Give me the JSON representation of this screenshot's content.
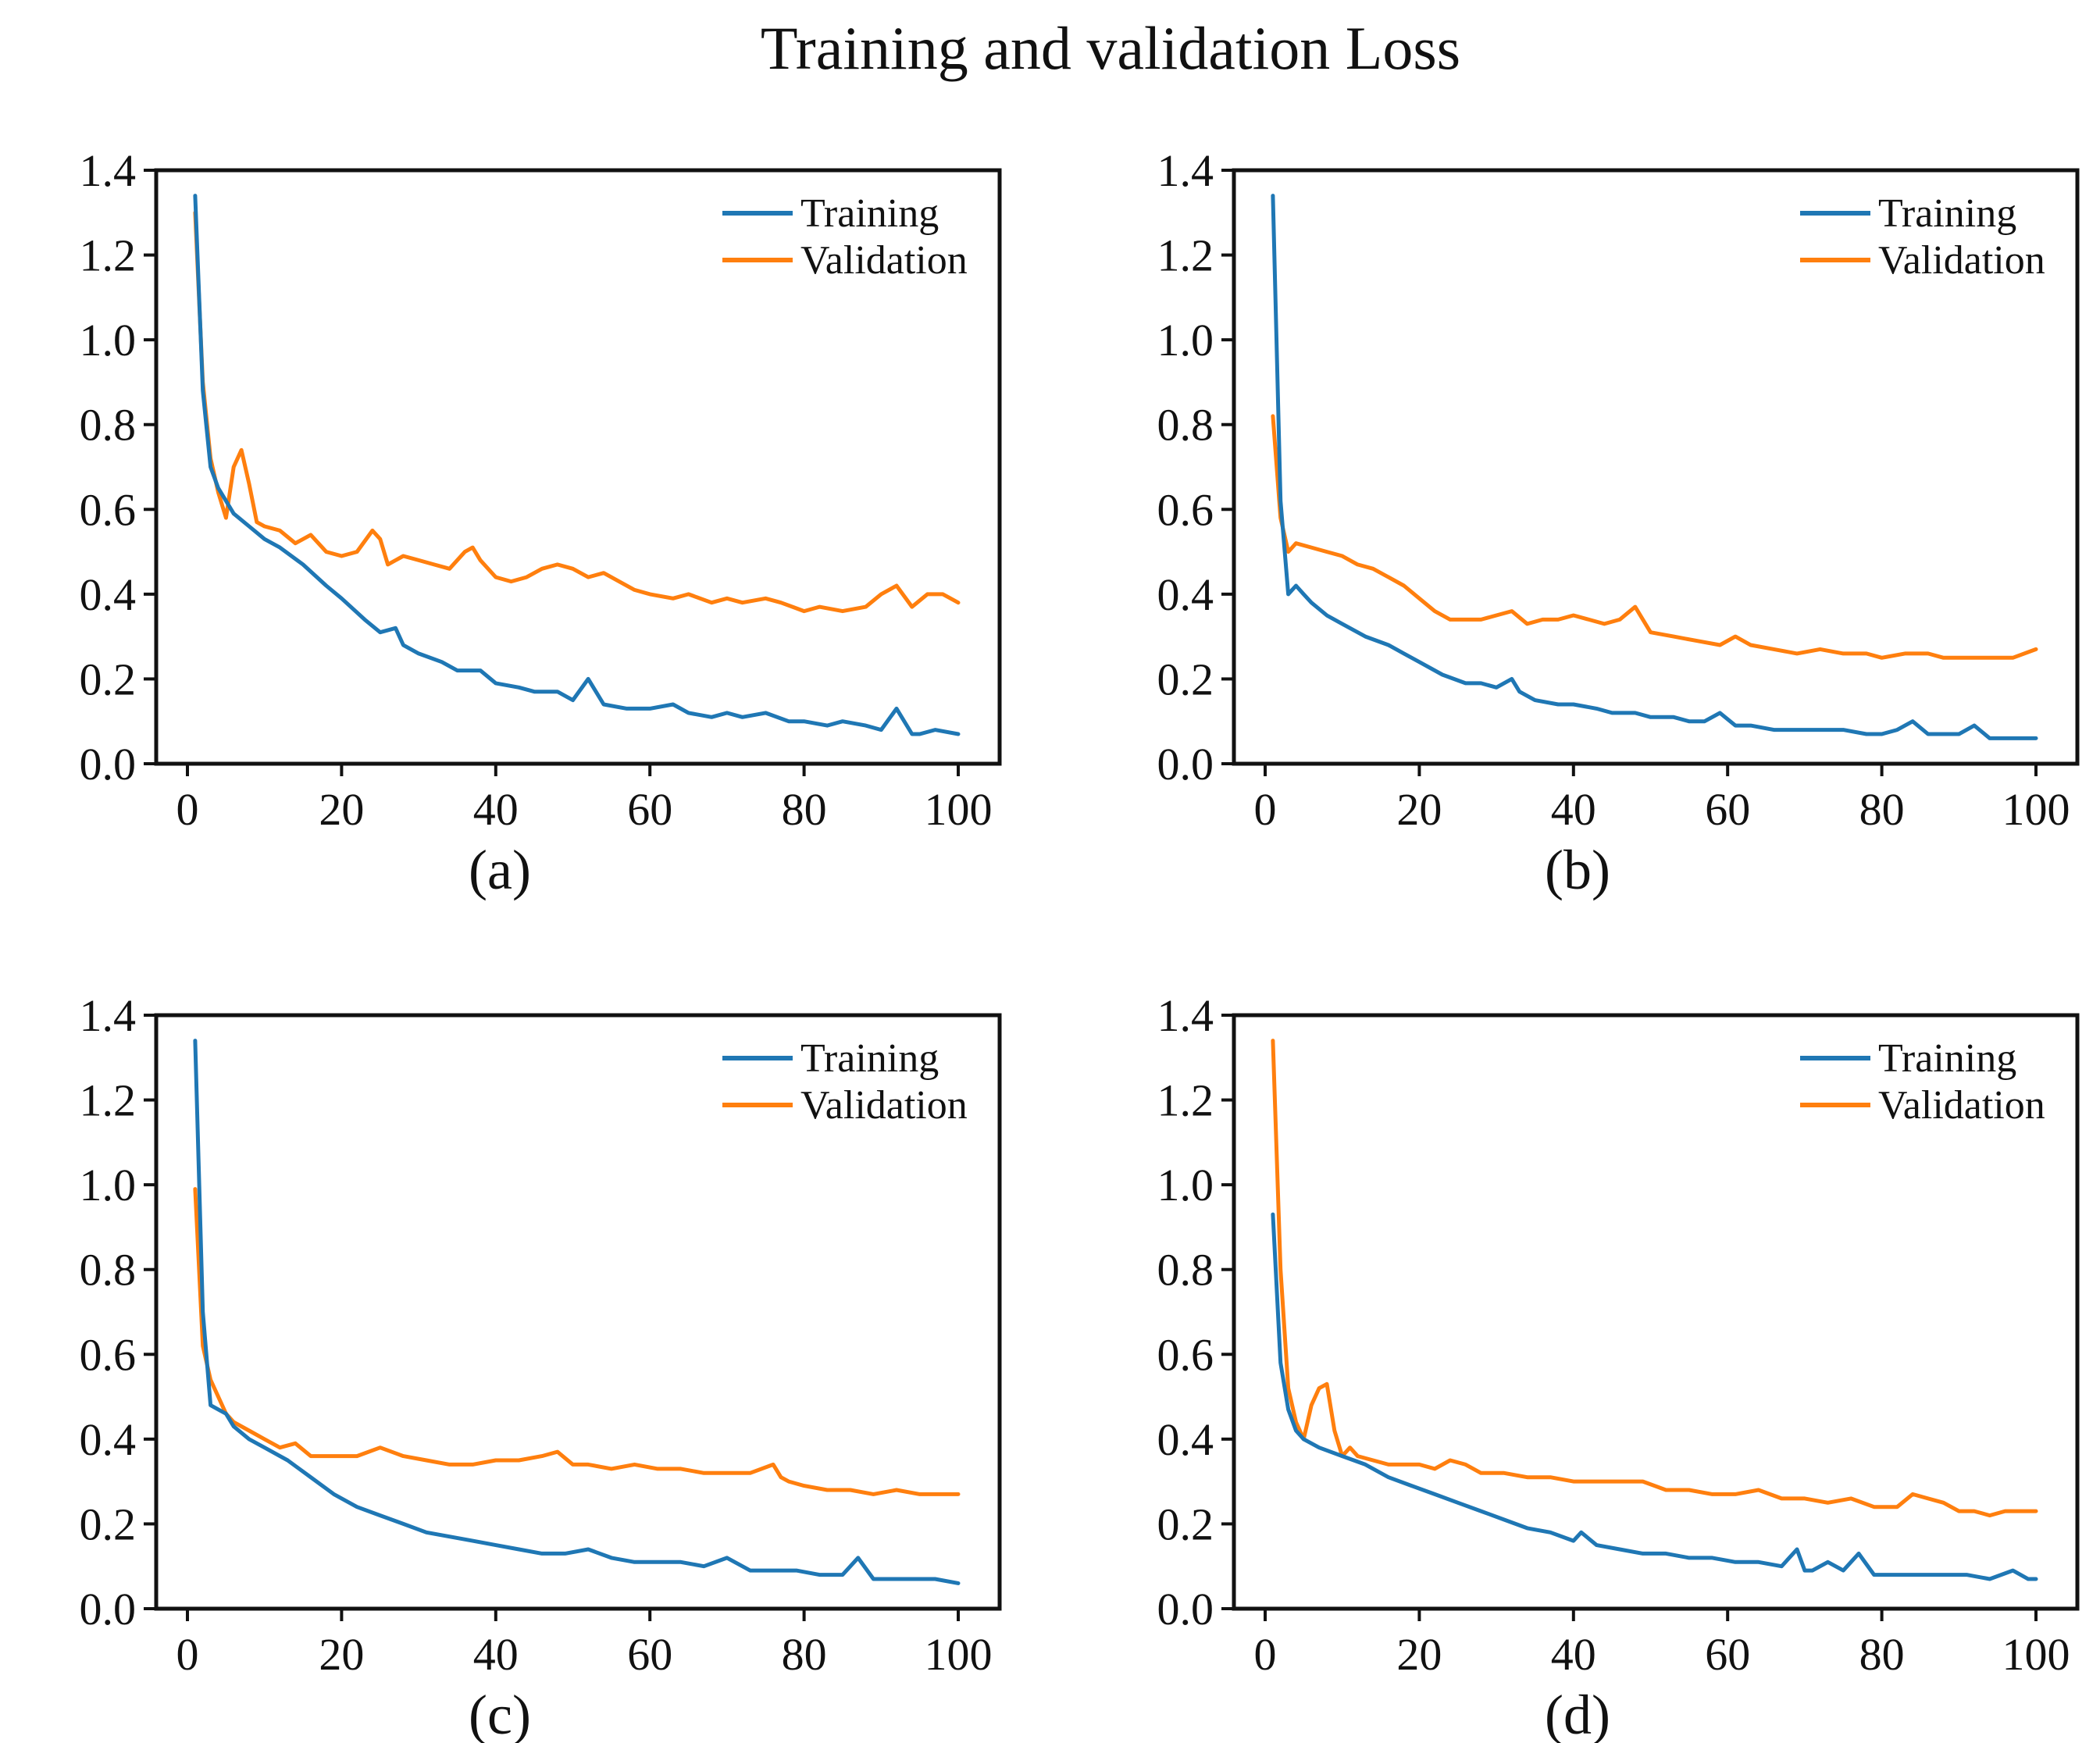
{
  "figure_title": "Training and validation Loss",
  "chart_data": [
    {
      "type": "line",
      "label": "(a)",
      "xlim": [
        0,
        100
      ],
      "ylim": [
        0.0,
        1.4
      ],
      "xticks": [
        "0",
        "20",
        "40",
        "60",
        "80",
        "100"
      ],
      "yticks": [
        "0.0",
        "0.2",
        "0.4",
        "0.6",
        "0.8",
        "1.0",
        "1.2",
        "1.4"
      ],
      "legend_position": "top-right",
      "series": [
        {
          "name": "Training",
          "color": "#1f77b4",
          "x": [
            1,
            2,
            3,
            4,
            5,
            6,
            8,
            10,
            12,
            15,
            18,
            20,
            23,
            25,
            27,
            28,
            30,
            33,
            35,
            38,
            40,
            43,
            45,
            48,
            50,
            52,
            54,
            57,
            60,
            63,
            65,
            68,
            70,
            72,
            75,
            78,
            80,
            83,
            85,
            88,
            90,
            92,
            94,
            95,
            97,
            100
          ],
          "y": [
            1.34,
            0.88,
            0.7,
            0.65,
            0.62,
            0.59,
            0.56,
            0.53,
            0.51,
            0.47,
            0.42,
            0.39,
            0.34,
            0.31,
            0.32,
            0.28,
            0.26,
            0.24,
            0.22,
            0.22,
            0.19,
            0.18,
            0.17,
            0.17,
            0.15,
            0.2,
            0.14,
            0.13,
            0.13,
            0.14,
            0.12,
            0.11,
            0.12,
            0.11,
            0.12,
            0.1,
            0.1,
            0.09,
            0.1,
            0.09,
            0.08,
            0.13,
            0.07,
            0.07,
            0.08,
            0.07
          ]
        },
        {
          "name": "Validation",
          "color": "#ff7f0e",
          "x": [
            1,
            2,
            3,
            4,
            5,
            6,
            7,
            8,
            9,
            10,
            12,
            14,
            16,
            18,
            20,
            22,
            24,
            25,
            26,
            28,
            30,
            32,
            34,
            36,
            37,
            38,
            40,
            42,
            44,
            46,
            48,
            50,
            52,
            54,
            56,
            58,
            60,
            63,
            65,
            68,
            70,
            72,
            75,
            77,
            80,
            82,
            85,
            88,
            90,
            92,
            94,
            96,
            98,
            100
          ],
          "y": [
            1.3,
            0.9,
            0.72,
            0.64,
            0.58,
            0.7,
            0.74,
            0.66,
            0.57,
            0.56,
            0.55,
            0.52,
            0.54,
            0.5,
            0.49,
            0.5,
            0.55,
            0.53,
            0.47,
            0.49,
            0.48,
            0.47,
            0.46,
            0.5,
            0.51,
            0.48,
            0.44,
            0.43,
            0.44,
            0.46,
            0.47,
            0.46,
            0.44,
            0.45,
            0.43,
            0.41,
            0.4,
            0.39,
            0.4,
            0.38,
            0.39,
            0.38,
            0.39,
            0.38,
            0.36,
            0.37,
            0.36,
            0.37,
            0.4,
            0.42,
            0.37,
            0.4,
            0.4,
            0.38
          ]
        }
      ]
    },
    {
      "type": "line",
      "label": "(b)",
      "xlim": [
        0,
        100
      ],
      "ylim": [
        0.0,
        1.4
      ],
      "xticks": [
        "0",
        "20",
        "40",
        "60",
        "80",
        "100"
      ],
      "yticks": [
        "0.0",
        "0.2",
        "0.4",
        "0.6",
        "0.8",
        "1.0",
        "1.2",
        "1.4"
      ],
      "legend_position": "top-right",
      "series": [
        {
          "name": "Training",
          "color": "#1f77b4",
          "x": [
            1,
            2,
            3,
            4,
            5,
            6,
            8,
            10,
            13,
            16,
            18,
            20,
            23,
            26,
            28,
            30,
            32,
            33,
            35,
            38,
            40,
            43,
            45,
            48,
            50,
            53,
            55,
            57,
            59,
            61,
            63,
            66,
            69,
            72,
            75,
            78,
            80,
            82,
            84,
            86,
            88,
            90,
            92,
            94,
            96,
            100
          ],
          "y": [
            1.34,
            0.62,
            0.4,
            0.42,
            0.4,
            0.38,
            0.35,
            0.33,
            0.3,
            0.28,
            0.26,
            0.24,
            0.21,
            0.19,
            0.19,
            0.18,
            0.2,
            0.17,
            0.15,
            0.14,
            0.14,
            0.13,
            0.12,
            0.12,
            0.11,
            0.11,
            0.1,
            0.1,
            0.12,
            0.09,
            0.09,
            0.08,
            0.08,
            0.08,
            0.08,
            0.07,
            0.07,
            0.08,
            0.1,
            0.07,
            0.07,
            0.07,
            0.09,
            0.06,
            0.06,
            0.06
          ]
        },
        {
          "name": "Validation",
          "color": "#ff7f0e",
          "x": [
            1,
            2,
            3,
            4,
            6,
            8,
            10,
            12,
            14,
            16,
            18,
            20,
            22,
            24,
            26,
            28,
            30,
            32,
            34,
            36,
            38,
            40,
            42,
            44,
            46,
            48,
            50,
            53,
            56,
            59,
            61,
            63,
            66,
            69,
            72,
            75,
            78,
            80,
            83,
            86,
            88,
            91,
            94,
            97,
            100
          ],
          "y": [
            0.82,
            0.58,
            0.5,
            0.52,
            0.51,
            0.5,
            0.49,
            0.47,
            0.46,
            0.44,
            0.42,
            0.39,
            0.36,
            0.34,
            0.34,
            0.34,
            0.35,
            0.36,
            0.33,
            0.34,
            0.34,
            0.35,
            0.34,
            0.33,
            0.34,
            0.37,
            0.31,
            0.3,
            0.29,
            0.28,
            0.3,
            0.28,
            0.27,
            0.26,
            0.27,
            0.26,
            0.26,
            0.25,
            0.26,
            0.26,
            0.25,
            0.25,
            0.25,
            0.25,
            0.27
          ]
        }
      ]
    },
    {
      "type": "line",
      "label": "(c)",
      "xlim": [
        0,
        100
      ],
      "ylim": [
        0.0,
        1.4
      ],
      "xticks": [
        "0",
        "20",
        "40",
        "60",
        "80",
        "100"
      ],
      "yticks": [
        "0.0",
        "0.2",
        "0.4",
        "0.6",
        "0.8",
        "1.0",
        "1.2",
        "1.4"
      ],
      "legend_position": "top-right",
      "series": [
        {
          "name": "Training",
          "color": "#1f77b4",
          "x": [
            1,
            2,
            3,
            4,
            5,
            6,
            8,
            10,
            13,
            16,
            19,
            22,
            25,
            28,
            31,
            34,
            37,
            40,
            43,
            46,
            49,
            52,
            55,
            58,
            61,
            64,
            67,
            70,
            73,
            76,
            79,
            82,
            85,
            87,
            89,
            91,
            94,
            97,
            100
          ],
          "y": [
            1.34,
            0.7,
            0.48,
            0.47,
            0.46,
            0.43,
            0.4,
            0.38,
            0.35,
            0.31,
            0.27,
            0.24,
            0.22,
            0.2,
            0.18,
            0.17,
            0.16,
            0.15,
            0.14,
            0.13,
            0.13,
            0.14,
            0.12,
            0.11,
            0.11,
            0.11,
            0.1,
            0.12,
            0.09,
            0.09,
            0.09,
            0.08,
            0.08,
            0.12,
            0.07,
            0.07,
            0.07,
            0.07,
            0.06
          ]
        },
        {
          "name": "Validation",
          "color": "#ff7f0e",
          "x": [
            1,
            2,
            3,
            4,
            5,
            6,
            8,
            10,
            12,
            14,
            16,
            18,
            20,
            22,
            25,
            28,
            31,
            34,
            37,
            40,
            43,
            46,
            48,
            50,
            52,
            55,
            58,
            61,
            64,
            67,
            70,
            73,
            76,
            77,
            78,
            80,
            83,
            86,
            89,
            92,
            95,
            98,
            100
          ],
          "y": [
            0.99,
            0.62,
            0.54,
            0.5,
            0.46,
            0.44,
            0.42,
            0.4,
            0.38,
            0.39,
            0.36,
            0.36,
            0.36,
            0.36,
            0.38,
            0.36,
            0.35,
            0.34,
            0.34,
            0.35,
            0.35,
            0.36,
            0.37,
            0.34,
            0.34,
            0.33,
            0.34,
            0.33,
            0.33,
            0.32,
            0.32,
            0.32,
            0.34,
            0.31,
            0.3,
            0.29,
            0.28,
            0.28,
            0.27,
            0.28,
            0.27,
            0.27,
            0.27
          ]
        }
      ]
    },
    {
      "type": "line",
      "label": "(d)",
      "xlim": [
        0,
        100
      ],
      "ylim": [
        0.0,
        1.4
      ],
      "xticks": [
        "0",
        "20",
        "40",
        "60",
        "80",
        "100"
      ],
      "yticks": [
        "0.0",
        "0.2",
        "0.4",
        "0.6",
        "0.8",
        "1.0",
        "1.2",
        "1.4"
      ],
      "legend_position": "top-right",
      "series": [
        {
          "name": "Training",
          "color": "#1f77b4",
          "x": [
            1,
            2,
            3,
            4,
            5,
            7,
            10,
            13,
            16,
            19,
            22,
            25,
            28,
            31,
            34,
            37,
            40,
            41,
            43,
            46,
            49,
            52,
            55,
            58,
            61,
            64,
            67,
            69,
            70,
            71,
            73,
            75,
            77,
            79,
            82,
            85,
            88,
            91,
            94,
            97,
            99,
            100
          ],
          "y": [
            0.93,
            0.58,
            0.47,
            0.42,
            0.4,
            0.38,
            0.36,
            0.34,
            0.31,
            0.29,
            0.27,
            0.25,
            0.23,
            0.21,
            0.19,
            0.18,
            0.16,
            0.18,
            0.15,
            0.14,
            0.13,
            0.13,
            0.12,
            0.12,
            0.11,
            0.11,
            0.1,
            0.14,
            0.09,
            0.09,
            0.11,
            0.09,
            0.13,
            0.08,
            0.08,
            0.08,
            0.08,
            0.08,
            0.07,
            0.09,
            0.07,
            0.07
          ]
        },
        {
          "name": "Validation",
          "color": "#ff7f0e",
          "x": [
            1,
            2,
            3,
            4,
            5,
            6,
            7,
            8,
            9,
            10,
            11,
            12,
            14,
            16,
            18,
            20,
            22,
            24,
            26,
            28,
            31,
            34,
            37,
            40,
            43,
            46,
            49,
            52,
            55,
            58,
            61,
            64,
            67,
            70,
            73,
            76,
            79,
            82,
            84,
            86,
            88,
            90,
            92,
            94,
            96,
            98,
            100
          ],
          "y": [
            1.34,
            0.8,
            0.52,
            0.44,
            0.4,
            0.48,
            0.52,
            0.53,
            0.42,
            0.36,
            0.38,
            0.36,
            0.35,
            0.34,
            0.34,
            0.34,
            0.33,
            0.35,
            0.34,
            0.32,
            0.32,
            0.31,
            0.31,
            0.3,
            0.3,
            0.3,
            0.3,
            0.28,
            0.28,
            0.27,
            0.27,
            0.28,
            0.26,
            0.26,
            0.25,
            0.26,
            0.24,
            0.24,
            0.27,
            0.26,
            0.25,
            0.23,
            0.23,
            0.22,
            0.23,
            0.23,
            0.23
          ]
        }
      ]
    }
  ]
}
